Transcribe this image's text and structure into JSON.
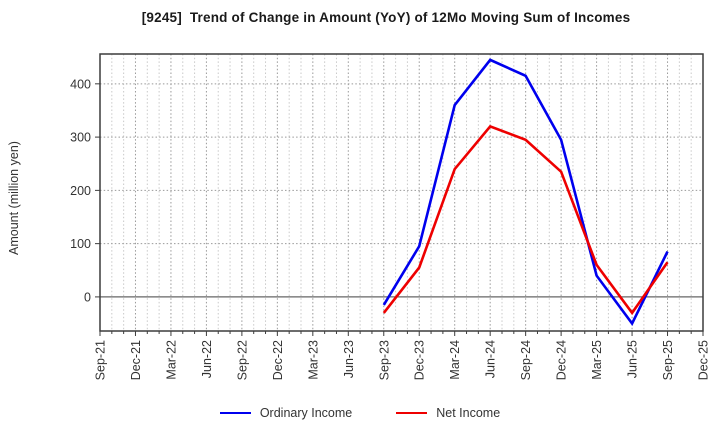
{
  "title": "[9245]  Trend of Change in Amount (YoY) of 12Mo Moving Sum of Incomes",
  "chart_data": {
    "type": "line",
    "title": "[9245]  Trend of Change in Amount (YoY) of 12Mo Moving Sum of Incomes",
    "xlabel": "",
    "ylabel": "Amount (million yen)",
    "ylim": [
      -64,
      456
    ],
    "yticks": [
      0,
      100,
      200,
      300,
      400
    ],
    "x_total_months": 51,
    "months_per_category": 3,
    "grid": "on",
    "legend_position": "bottom",
    "categories": [
      "Sep-21",
      "Dec-21",
      "Mar-22",
      "Jun-22",
      "Sep-22",
      "Dec-22",
      "Mar-23",
      "Jun-23",
      "Sep-23",
      "Dec-23",
      "Mar-24",
      "Jun-24",
      "Sep-24",
      "Dec-24",
      "Mar-25",
      "Jun-25",
      "Sep-25",
      "Dec-25"
    ],
    "series": [
      {
        "name": "Ordinary Income",
        "color": "#0000ee",
        "values": [
          null,
          null,
          null,
          null,
          null,
          null,
          null,
          null,
          -15,
          95,
          360,
          445,
          415,
          295,
          40,
          -50,
          85,
          null
        ]
      },
      {
        "name": "Net Income",
        "color": "#ee0000",
        "values": [
          null,
          null,
          null,
          null,
          null,
          null,
          null,
          null,
          -30,
          55,
          240,
          320,
          295,
          235,
          60,
          -30,
          65,
          null
        ]
      }
    ]
  },
  "colors": {
    "grid_minor": "#c9c9c9",
    "grid_major": "#999999",
    "zero_line": "#666666",
    "border": "#3c3c3c",
    "tick_text": "#333333"
  }
}
